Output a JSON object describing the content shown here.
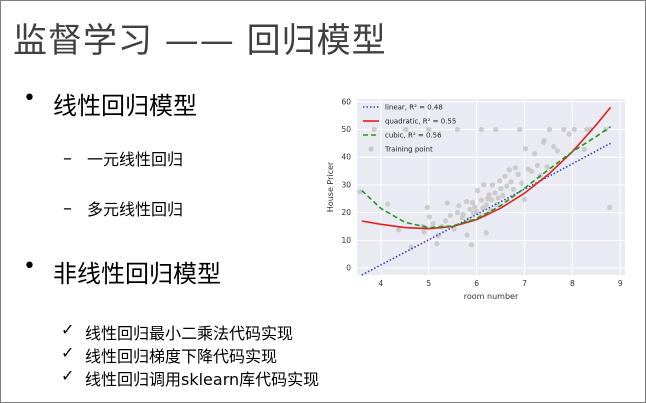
{
  "slide": {
    "title": "监督学习 —— 回归模型",
    "bullets": [
      {
        "label": "线性回归模型",
        "subs": [
          "一元线性回归",
          "多元线性回归"
        ]
      },
      {
        "label": "非线性回归模型"
      }
    ],
    "checks": [
      "线性回归最小二乘法代码实现",
      "线性回归梯度下降代码实现",
      "线性回归调用sklearn库代码实现"
    ],
    "bullet_symbol": "•",
    "dash_symbol": "–",
    "check_symbol": "✓"
  },
  "chart_data": {
    "type": "scatter",
    "xlabel": "room number",
    "ylabel": "House Pricer",
    "xlim": [
      3.5,
      9.1
    ],
    "ylim": [
      -2.5,
      61
    ],
    "x_ticks": [
      4,
      5,
      6,
      7,
      8,
      9
    ],
    "y_ticks": [
      0,
      10,
      20,
      30,
      40,
      50,
      60
    ],
    "grid": true,
    "legend_position": "top-left",
    "colors": {
      "linear": "#3344bb",
      "quadratic": "#dd2222",
      "cubic": "#229922",
      "points": "#c8c8c8",
      "background": "#eaeaf2"
    },
    "series": [
      {
        "name": "linear, R² = 0.48",
        "kind": "dotted-line",
        "x": [
          3.6,
          4.5,
          5.5,
          6.5,
          7.5,
          8.8
        ],
        "y": [
          -2.5,
          5.7,
          14.8,
          23.9,
          33.0,
          45.0
        ]
      },
      {
        "name": "quadratic, R² = 0.55",
        "kind": "solid-line",
        "x": [
          3.6,
          4.0,
          4.5,
          5.0,
          5.5,
          6.0,
          6.5,
          7.0,
          7.5,
          8.0,
          8.5,
          8.8
        ],
        "y": [
          17.0,
          15.8,
          14.6,
          14.2,
          15.0,
          17.5,
          21.6,
          27.0,
          33.8,
          42.0,
          51.7,
          58.0
        ]
      },
      {
        "name": "cubic, R² = 0.56",
        "kind": "dashed-line",
        "x": [
          3.6,
          4.0,
          4.5,
          5.0,
          5.5,
          6.0,
          6.5,
          7.0,
          7.5,
          8.0,
          8.5,
          8.8
        ],
        "y": [
          28.0,
          21.5,
          16.5,
          14.6,
          15.2,
          17.8,
          22.5,
          28.8,
          35.5,
          42.0,
          47.5,
          51.0
        ]
      },
      {
        "name": "Training point",
        "kind": "points",
        "x": [
          3.56,
          3.86,
          4.14,
          4.37,
          4.52,
          4.63,
          4.88,
          4.9,
          4.97,
          5.01,
          5.09,
          5.17,
          5.27,
          5.35,
          5.39,
          5.45,
          5.53,
          5.6,
          5.63,
          5.7,
          5.72,
          5.79,
          5.83,
          5.86,
          5.89,
          5.91,
          5.93,
          5.96,
          6.0,
          6.02,
          6.06,
          6.1,
          6.13,
          6.15,
          6.17,
          6.2,
          6.23,
          6.26,
          6.29,
          6.31,
          6.33,
          6.38,
          6.42,
          6.45,
          6.48,
          6.51,
          6.55,
          6.59,
          6.63,
          6.68,
          6.72,
          6.77,
          6.81,
          6.87,
          6.94,
          7.02,
          7.08,
          7.15,
          7.21,
          7.27,
          7.33,
          7.41,
          7.47,
          7.52,
          7.61,
          7.69,
          7.82,
          7.93,
          8.04,
          8.25,
          8.38,
          8.7,
          8.78,
          5.0,
          5.6,
          6.1,
          6.4,
          6.9,
          5.8,
          6.2,
          7.0,
          7.4,
          8.3,
          5.2
        ],
        "y": [
          27.5,
          50.0,
          23.1,
          13.8,
          50.0,
          7.5,
          15.0,
          13.0,
          21.9,
          18.5,
          16.0,
          8.8,
          14.9,
          17.0,
          23.5,
          19.0,
          14.1,
          20.0,
          22.5,
          18.2,
          19.4,
          24.0,
          17.5,
          21.2,
          8.4,
          23.7,
          19.9,
          22.0,
          20.5,
          28.0,
          18.7,
          24.5,
          21.7,
          30.1,
          19.1,
          22.8,
          25.0,
          26.4,
          20.6,
          24.7,
          30.0,
          27.1,
          23.0,
          25.3,
          31.5,
          28.7,
          26.2,
          33.1,
          29.6,
          35.4,
          31.1,
          28.4,
          36.2,
          33.8,
          30.7,
          43.1,
          35.7,
          34.9,
          41.3,
          37.0,
          33.4,
          46.0,
          36.5,
          50.0,
          43.8,
          42.3,
          50.0,
          48.3,
          50.0,
          42.8,
          50.0,
          50.0,
          21.9,
          50.0,
          50.0,
          50.0,
          50.0,
          50.0,
          11.9,
          12.7,
          24.8,
          45.4,
          50.0,
          11.7
        ]
      }
    ]
  }
}
